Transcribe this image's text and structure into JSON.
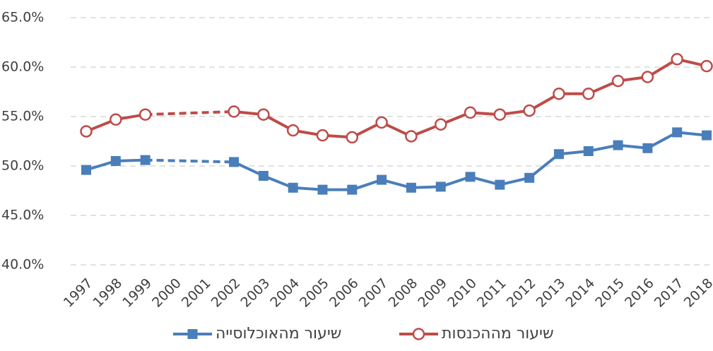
{
  "chart_data": {
    "type": "line",
    "categories": [
      "1997",
      "1998",
      "1999",
      "2000",
      "2001",
      "2002",
      "2003",
      "2004",
      "2005",
      "2006",
      "2007",
      "2008",
      "2009",
      "2010",
      "2011",
      "2012",
      "2013",
      "2014",
      "2015",
      "2016",
      "2017",
      "2018"
    ],
    "series": [
      {
        "name": "שיעור מהאוכלוסייה",
        "color": "#4a7ebb",
        "marker": "square",
        "values": [
          49.6,
          50.5,
          50.6,
          null,
          null,
          50.4,
          49.0,
          47.8,
          47.6,
          47.6,
          48.6,
          47.8,
          47.9,
          48.9,
          48.1,
          48.8,
          51.2,
          51.5,
          52.1,
          51.8,
          53.4,
          53.1
        ]
      },
      {
        "name": "שיעור מההכנסות",
        "color": "#be4b48",
        "marker": "circle",
        "values": [
          53.5,
          54.7,
          55.2,
          null,
          null,
          55.5,
          55.2,
          53.6,
          53.1,
          52.9,
          54.4,
          53.0,
          54.2,
          55.4,
          55.2,
          55.6,
          57.3,
          57.3,
          58.6,
          59.0,
          60.8,
          60.1
        ]
      }
    ],
    "ylim": [
      40,
      65
    ],
    "yticks": [
      {
        "value": 40,
        "label": "40.0%"
      },
      {
        "value": 45,
        "label": "45.0%"
      },
      {
        "value": 50,
        "label": "50.0%"
      },
      {
        "value": 55,
        "label": "55.0%"
      },
      {
        "value": 60,
        "label": "60.0%"
      },
      {
        "value": 65,
        "label": "65.0%"
      }
    ],
    "grid": true,
    "legend": "bottom"
  }
}
